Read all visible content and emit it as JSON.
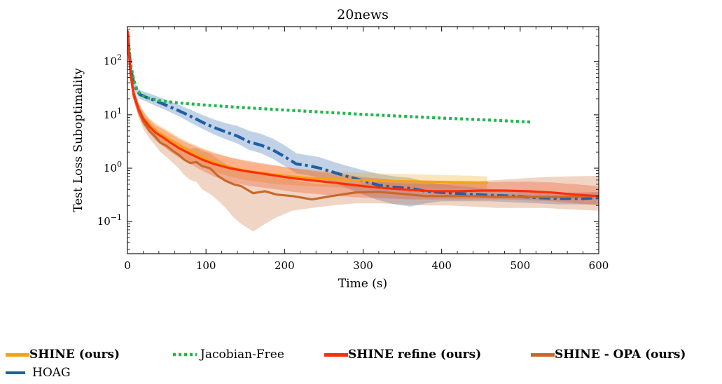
{
  "chart_data": {
    "type": "line",
    "title": "20news",
    "xlabel": "Time (s)",
    "ylabel": "Test Loss Suboptimality",
    "xlim": [
      0,
      600
    ],
    "ylim": [
      0.025,
      450
    ],
    "yscale": "log",
    "xticks": [
      "0",
      "100",
      "200",
      "300",
      "400",
      "500",
      "600"
    ],
    "yticks": [
      {
        "value": 100,
        "base": "10",
        "exp": "2"
      },
      {
        "value": 10,
        "base": "10",
        "exp": "1"
      },
      {
        "value": 1,
        "base": "10",
        "exp": "0"
      },
      {
        "value": 0.1,
        "base": "10",
        "exp": "−1"
      }
    ],
    "grid": false,
    "legend_position": "bottom",
    "series": [
      {
        "name": "SHINE (ours)",
        "color": "#f5a30f",
        "style": "solid",
        "bold": true,
        "x": [
          0,
          4,
          8,
          14,
          20,
          28,
          36,
          45,
          55,
          65,
          80,
          95,
          110,
          130,
          150,
          170,
          190,
          210,
          230,
          260,
          290,
          320,
          350,
          380,
          410,
          440,
          458
        ],
        "y": [
          370,
          60,
          25,
          13,
          9,
          6.5,
          5,
          4.2,
          3.4,
          2.7,
          2.1,
          1.6,
          1.3,
          1.05,
          0.9,
          0.82,
          0.75,
          0.7,
          0.66,
          0.62,
          0.6,
          0.58,
          0.57,
          0.56,
          0.55,
          0.54,
          0.53
        ],
        "band_low": [
          330,
          50,
          20,
          10,
          7,
          4.8,
          3.6,
          2.9,
          2.3,
          1.8,
          1.35,
          1.05,
          0.85,
          0.7,
          0.6,
          0.55,
          0.5,
          0.48,
          0.46,
          0.44,
          0.43,
          0.42,
          0.42,
          0.42,
          0.42,
          0.42,
          0.42
        ],
        "band_high": [
          420,
          75,
          32,
          17,
          12,
          8.5,
          7,
          5.8,
          4.8,
          3.8,
          3.0,
          2.4,
          2.0,
          1.6,
          1.35,
          1.2,
          1.1,
          1.0,
          0.95,
          0.88,
          0.84,
          0.8,
          0.78,
          0.76,
          0.74,
          0.72,
          0.7
        ]
      },
      {
        "name": "Jacobian-Free",
        "color": "#1fb84b",
        "style": "dotted",
        "bold": false,
        "x": [
          0,
          4,
          8,
          12,
          16,
          25,
          40,
          60,
          80,
          100,
          130,
          160,
          200,
          250,
          300,
          350,
          400,
          450,
          500,
          515
        ],
        "y": [
          370,
          90,
          45,
          30,
          25,
          21,
          18.5,
          17,
          16,
          15.2,
          14.2,
          13.3,
          12.3,
          11.2,
          10.2,
          9.4,
          8.7,
          8.1,
          7.5,
          7.3
        ]
      },
      {
        "name": "SHINE refine (ours)",
        "color": "#ff2d0a",
        "style": "solid",
        "bold": true,
        "x": [
          0,
          4,
          8,
          14,
          20,
          28,
          36,
          45,
          55,
          65,
          80,
          95,
          110,
          130,
          150,
          170,
          190,
          210,
          240,
          270,
          300,
          330,
          360,
          390,
          420,
          450,
          480,
          510,
          540,
          570,
          600
        ],
        "y": [
          370,
          60,
          25,
          13,
          8.5,
          6,
          4.6,
          3.8,
          3.0,
          2.4,
          1.85,
          1.45,
          1.2,
          1.0,
          0.88,
          0.8,
          0.72,
          0.65,
          0.58,
          0.52,
          0.46,
          0.42,
          0.39,
          0.37,
          0.37,
          0.38,
          0.38,
          0.37,
          0.35,
          0.32,
          0.3
        ],
        "band_low": [
          330,
          50,
          20,
          10,
          6.4,
          4.5,
          3.3,
          2.6,
          2.0,
          1.6,
          1.2,
          0.9,
          0.7,
          0.55,
          0.48,
          0.44,
          0.4,
          0.36,
          0.33,
          0.3,
          0.28,
          0.27,
          0.26,
          0.26,
          0.26,
          0.26,
          0.26,
          0.25,
          0.24,
          0.22,
          0.2
        ],
        "band_high": [
          420,
          75,
          32,
          17,
          11.5,
          8.2,
          6.4,
          5.4,
          4.4,
          3.6,
          2.8,
          2.3,
          1.9,
          1.6,
          1.4,
          1.25,
          1.12,
          1.0,
          0.88,
          0.78,
          0.68,
          0.62,
          0.56,
          0.53,
          0.52,
          0.54,
          0.56,
          0.56,
          0.54,
          0.5,
          0.46
        ]
      },
      {
        "name": "SHINE - OPA (ours)",
        "color": "#c8692a",
        "style": "solid",
        "bold": true,
        "x": [
          0,
          4,
          8,
          14,
          20,
          28,
          36,
          42,
          50,
          58,
          65,
          72,
          80,
          88,
          95,
          105,
          115,
          125,
          135,
          145,
          160,
          175,
          190,
          210,
          235,
          260,
          290,
          320,
          350,
          380,
          410,
          440,
          470,
          500,
          530,
          560,
          600
        ],
        "y": [
          370,
          55,
          22,
          12,
          7.5,
          5.0,
          3.8,
          3.0,
          2.6,
          2.1,
          1.8,
          1.45,
          1.25,
          1.3,
          1.1,
          1.0,
          0.72,
          0.58,
          0.5,
          0.46,
          0.34,
          0.37,
          0.32,
          0.3,
          0.26,
          0.3,
          0.35,
          0.36,
          0.33,
          0.3,
          0.3,
          0.3,
          0.29,
          0.29,
          0.29,
          0.29,
          0.3
        ],
        "band_low": [
          330,
          45,
          18,
          9,
          5.5,
          3.6,
          2.6,
          2.0,
          1.6,
          1.25,
          1.0,
          0.75,
          0.6,
          0.55,
          0.4,
          0.33,
          0.25,
          0.18,
          0.12,
          0.09,
          0.065,
          0.09,
          0.12,
          0.16,
          0.18,
          0.2,
          0.22,
          0.22,
          0.21,
          0.2,
          0.2,
          0.19,
          0.18,
          0.18,
          0.18,
          0.17,
          0.16
        ],
        "band_high": [
          420,
          70,
          28,
          16,
          10,
          7.2,
          5.6,
          4.6,
          4.0,
          3.4,
          3.0,
          2.6,
          2.3,
          2.4,
          2.1,
          1.9,
          1.5,
          1.2,
          1.05,
          0.95,
          0.8,
          0.75,
          0.68,
          0.6,
          0.52,
          0.5,
          0.5,
          0.55,
          0.52,
          0.5,
          0.52,
          0.56,
          0.6,
          0.64,
          0.68,
          0.7,
          0.72
        ]
      },
      {
        "name": "HOAG",
        "color": "#1f5fa6",
        "style": "dashdot",
        "bold": false,
        "x": [
          0,
          4,
          8,
          12,
          16,
          25,
          35,
          50,
          65,
          80,
          95,
          110,
          125,
          140,
          155,
          170,
          185,
          200,
          215,
          230,
          245,
          260,
          280,
          300,
          320,
          340,
          360,
          380,
          400,
          430,
          460,
          490,
          520,
          550,
          580,
          600
        ],
        "y": [
          370,
          75,
          40,
          28,
          24,
          21,
          18.5,
          15,
          12,
          9.5,
          7.3,
          5.8,
          4.8,
          4.0,
          3.1,
          2.7,
          2.2,
          1.65,
          1.2,
          1.12,
          1.0,
          0.86,
          0.7,
          0.58,
          0.48,
          0.44,
          0.42,
          0.37,
          0.35,
          0.33,
          0.31,
          0.3,
          0.28,
          0.27,
          0.27,
          0.28
        ],
        "band_low": [
          330,
          65,
          34,
          24,
          20,
          17.5,
          15,
          12,
          9.5,
          7.2,
          5.5,
          4.3,
          3.5,
          2.9,
          2.2,
          1.9,
          1.5,
          1.1,
          0.8,
          0.74,
          0.66,
          0.55,
          0.42,
          0.32,
          0.25,
          0.21,
          0.19,
          0.22,
          0.24,
          0.24,
          0.24,
          0.23,
          0.22,
          0.21,
          0.21,
          0.21
        ],
        "band_high": [
          420,
          90,
          48,
          33,
          29,
          26,
          23,
          19,
          15.5,
          12.5,
          10,
          8.2,
          7.0,
          6.2,
          5.0,
          4.4,
          3.6,
          2.7,
          1.9,
          1.75,
          1.6,
          1.35,
          1.1,
          0.92,
          0.78,
          0.7,
          0.66,
          0.56,
          0.5,
          0.45,
          0.41,
          0.39,
          0.37,
          0.35,
          0.35,
          0.36
        ]
      }
    ]
  }
}
